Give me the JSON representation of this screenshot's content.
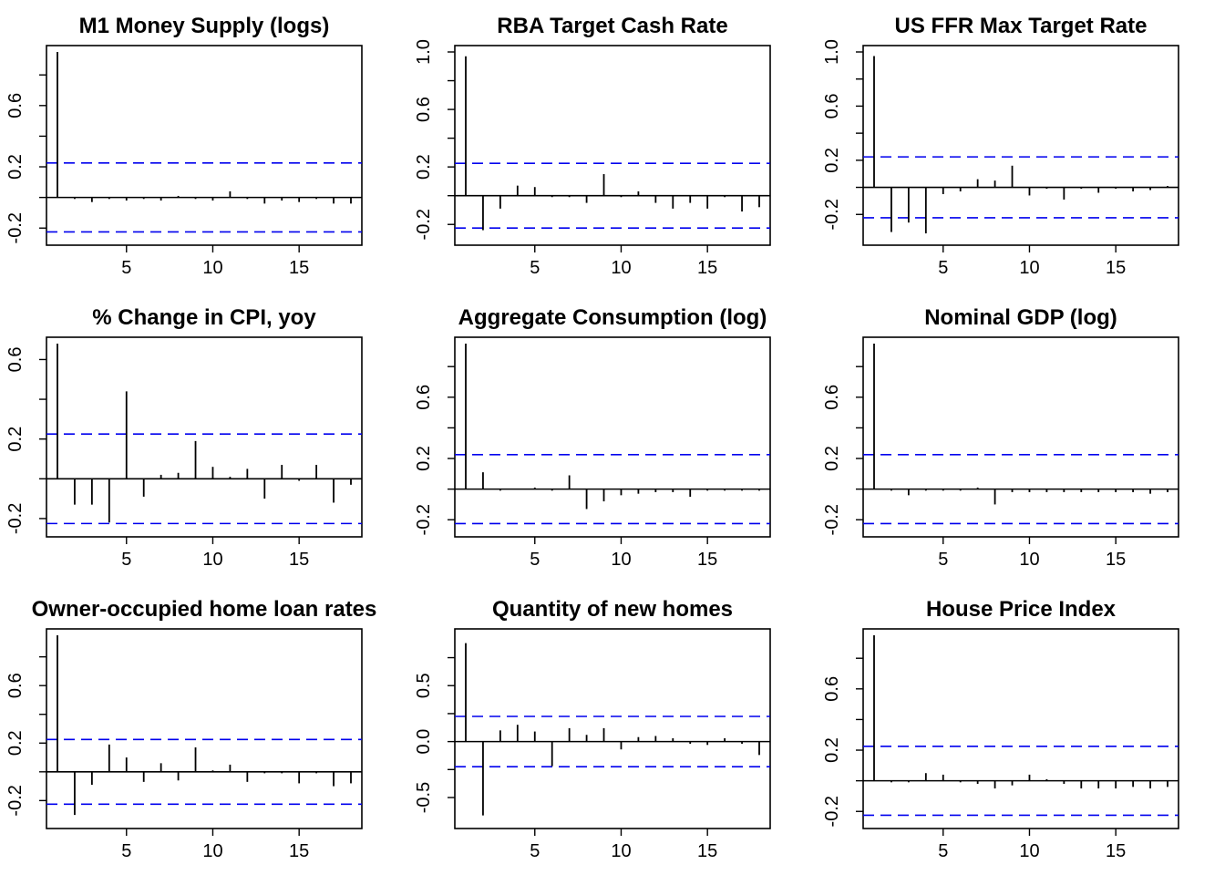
{
  "chart_data": [
    {
      "type": "bar",
      "title": "M1 Money Supply (logs)",
      "x_lags": [
        1,
        2,
        3,
        4,
        5,
        6,
        7,
        8,
        9,
        10,
        11,
        12,
        13,
        14,
        15,
        16,
        17,
        18
      ],
      "values": [
        0.95,
        -0.01,
        -0.03,
        -0.01,
        -0.02,
        -0.01,
        -0.02,
        0.01,
        -0.01,
        -0.02,
        0.04,
        -0.01,
        -0.04,
        -0.02,
        -0.03,
        -0.01,
        -0.04,
        -0.04
      ],
      "confidence_bounds": [
        -0.225,
        0.225
      ],
      "xlim": [
        1,
        18
      ],
      "ylim": [
        -0.27,
        0.95
      ],
      "xticks": [
        "5",
        "10",
        "15"
      ],
      "yticks": [
        "-0.2",
        "0.2",
        "0.6"
      ]
    },
    {
      "type": "bar",
      "title": "RBA Target Cash Rate",
      "x_lags": [
        1,
        2,
        3,
        4,
        5,
        6,
        7,
        8,
        9,
        10,
        11,
        12,
        13,
        14,
        15,
        16,
        17,
        18
      ],
      "values": [
        0.97,
        -0.24,
        -0.09,
        0.07,
        0.06,
        -0.01,
        -0.01,
        -0.05,
        0.15,
        -0.01,
        0.03,
        -0.05,
        -0.09,
        -0.05,
        -0.09,
        -0.01,
        -0.11,
        -0.08
      ],
      "confidence_bounds": [
        -0.225,
        0.225
      ],
      "xlim": [
        1,
        18
      ],
      "ylim": [
        -0.3,
        1.0
      ],
      "xticks": [
        "5",
        "10",
        "15"
      ],
      "yticks": [
        "-0.2",
        "0.2",
        "0.6",
        "1.0"
      ]
    },
    {
      "type": "bar",
      "title": "US FFR Max Target Rate",
      "x_lags": [
        1,
        2,
        3,
        4,
        5,
        6,
        7,
        8,
        9,
        10,
        11,
        12,
        13,
        14,
        15,
        16,
        17,
        18
      ],
      "values": [
        0.97,
        -0.33,
        -0.26,
        -0.34,
        -0.05,
        -0.03,
        0.06,
        0.05,
        0.16,
        -0.06,
        -0.01,
        -0.09,
        -0.01,
        -0.04,
        -0.01,
        -0.03,
        -0.02,
        0.01
      ],
      "confidence_bounds": [
        -0.225,
        0.225
      ],
      "xlim": [
        1,
        18
      ],
      "ylim": [
        -0.38,
        1.0
      ],
      "xticks": [
        "5",
        "10",
        "15"
      ],
      "yticks": [
        "-0.2",
        "0.2",
        "0.6",
        "1.0"
      ]
    },
    {
      "type": "bar",
      "title": "% Change in CPI, yoy",
      "x_lags": [
        1,
        2,
        3,
        4,
        5,
        6,
        7,
        8,
        9,
        10,
        11,
        12,
        13,
        14,
        15,
        16,
        17,
        18
      ],
      "values": [
        0.68,
        -0.13,
        -0.13,
        -0.22,
        0.44,
        -0.09,
        0.02,
        0.03,
        0.19,
        0.06,
        0.01,
        0.05,
        -0.1,
        0.07,
        -0.01,
        0.07,
        -0.12,
        -0.03
      ],
      "confidence_bounds": [
        -0.225,
        0.225
      ],
      "xlim": [
        1,
        18
      ],
      "ylim": [
        -0.26,
        0.68
      ],
      "xticks": [
        "5",
        "10",
        "15"
      ],
      "yticks": [
        "-0.2",
        "0.2",
        "0.6"
      ]
    },
    {
      "type": "bar",
      "title": "Aggregate Consumption (log)",
      "x_lags": [
        1,
        2,
        3,
        4,
        5,
        6,
        7,
        8,
        9,
        10,
        11,
        12,
        13,
        14,
        15,
        16,
        17,
        18
      ],
      "values": [
        0.95,
        0.11,
        -0.01,
        0.0,
        0.01,
        -0.01,
        0.09,
        -0.13,
        -0.08,
        -0.04,
        -0.03,
        -0.02,
        -0.02,
        -0.05,
        -0.01,
        -0.01,
        -0.01,
        -0.01
      ],
      "confidence_bounds": [
        -0.225,
        0.225
      ],
      "xlim": [
        1,
        18
      ],
      "ylim": [
        -0.27,
        0.95
      ],
      "xticks": [
        "5",
        "10",
        "15"
      ],
      "yticks": [
        "-0.2",
        "0.2",
        "0.6"
      ]
    },
    {
      "type": "bar",
      "title": "Nominal GDP (log)",
      "x_lags": [
        1,
        2,
        3,
        4,
        5,
        6,
        7,
        8,
        9,
        10,
        11,
        12,
        13,
        14,
        15,
        16,
        17,
        18
      ],
      "values": [
        0.95,
        -0.01,
        -0.04,
        -0.01,
        -0.01,
        -0.01,
        0.01,
        -0.1,
        -0.02,
        -0.02,
        -0.02,
        -0.02,
        -0.02,
        -0.02,
        -0.02,
        -0.02,
        -0.03,
        -0.02
      ],
      "confidence_bounds": [
        -0.225,
        0.225
      ],
      "xlim": [
        1,
        18
      ],
      "ylim": [
        -0.27,
        0.95
      ],
      "xticks": [
        "5",
        "10",
        "15"
      ],
      "yticks": [
        "-0.2",
        "0.2",
        "0.6"
      ]
    },
    {
      "type": "bar",
      "title": "Owner-occupied home loan rates",
      "x_lags": [
        1,
        2,
        3,
        4,
        5,
        6,
        7,
        8,
        9,
        10,
        11,
        12,
        13,
        14,
        15,
        16,
        17,
        18
      ],
      "values": [
        0.95,
        -0.3,
        -0.09,
        0.19,
        0.1,
        -0.07,
        0.06,
        -0.06,
        0.17,
        0.01,
        0.05,
        -0.07,
        -0.01,
        -0.01,
        -0.08,
        -0.01,
        -0.1,
        -0.08
      ],
      "confidence_bounds": [
        -0.225,
        0.225
      ],
      "xlim": [
        1,
        18
      ],
      "ylim": [
        -0.35,
        0.95
      ],
      "xticks": [
        "5",
        "10",
        "15"
      ],
      "yticks": [
        "-0.2",
        "0.2",
        "0.6"
      ]
    },
    {
      "type": "bar",
      "title": "Quantity of new homes",
      "x_lags": [
        1,
        2,
        3,
        4,
        5,
        6,
        7,
        8,
        9,
        10,
        11,
        12,
        13,
        14,
        15,
        16,
        17,
        18
      ],
      "values": [
        0.88,
        -0.66,
        0.1,
        0.15,
        0.09,
        -0.22,
        0.12,
        0.06,
        0.12,
        -0.07,
        0.04,
        0.05,
        0.03,
        -0.02,
        -0.03,
        0.03,
        -0.02,
        -0.12
      ],
      "confidence_bounds": [
        -0.225,
        0.225
      ],
      "xlim": [
        1,
        18
      ],
      "ylim": [
        -0.72,
        0.95
      ],
      "xticks": [
        "5",
        "10",
        "15"
      ],
      "yticks": [
        "-0.5",
        "0.0",
        "0.5"
      ]
    },
    {
      "type": "bar",
      "title": "House Price Index",
      "x_lags": [
        1,
        2,
        3,
        4,
        5,
        6,
        7,
        8,
        9,
        10,
        11,
        12,
        13,
        14,
        15,
        16,
        17,
        18
      ],
      "values": [
        0.95,
        -0.01,
        -0.01,
        0.05,
        0.04,
        -0.01,
        -0.02,
        -0.05,
        -0.03,
        0.04,
        0.01,
        -0.02,
        -0.05,
        -0.05,
        -0.05,
        -0.04,
        -0.05,
        -0.04
      ],
      "confidence_bounds": [
        -0.225,
        0.225
      ],
      "xlim": [
        1,
        18
      ],
      "ylim": [
        -0.27,
        0.95
      ],
      "xticks": [
        "5",
        "10",
        "15"
      ],
      "yticks": [
        "-0.2",
        "0.2",
        "0.6"
      ]
    }
  ],
  "colors": {
    "bars": "#000000",
    "axes": "#000000",
    "confidence_line": "#0000ee"
  }
}
